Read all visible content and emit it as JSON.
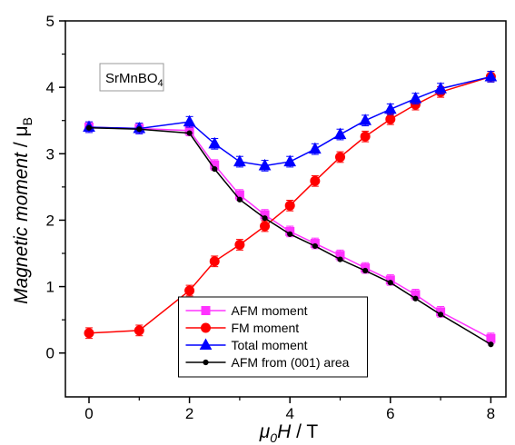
{
  "chart_data": {
    "type": "line",
    "x": [
      0,
      1,
      2,
      2.5,
      3,
      3.5,
      4,
      4.5,
      5,
      5.5,
      6,
      6.5,
      7,
      8
    ],
    "series": [
      {
        "name": "AFM moment",
        "color": "#ff33ff",
        "marker": "square",
        "values": [
          3.4,
          3.38,
          3.35,
          2.83,
          2.38,
          2.08,
          1.83,
          1.65,
          1.47,
          1.28,
          1.1,
          0.88,
          0.62,
          0.22
        ],
        "errors": [
          0.08,
          0.08,
          0.08,
          0.08,
          0.08,
          0.08,
          0.08,
          0.08,
          0.08,
          0.08,
          0.08,
          0.08,
          0.08,
          0.08
        ]
      },
      {
        "name": "FM moment",
        "color": "#ff0000",
        "marker": "circle",
        "values": [
          0.3,
          0.34,
          0.94,
          1.38,
          1.63,
          1.91,
          2.22,
          2.59,
          2.95,
          3.26,
          3.52,
          3.74,
          3.93,
          4.16
        ],
        "errors": [
          0.08,
          0.08,
          0.08,
          0.08,
          0.08,
          0.08,
          0.08,
          0.08,
          0.08,
          0.08,
          0.08,
          0.08,
          0.08,
          0.08
        ]
      },
      {
        "name": "Total moment",
        "color": "#0000ff",
        "marker": "triangle",
        "values": [
          3.4,
          3.38,
          3.48,
          3.15,
          2.88,
          2.82,
          2.88,
          3.07,
          3.29,
          3.5,
          3.67,
          3.83,
          3.98,
          4.16
        ],
        "errors": [
          0.08,
          0.08,
          0.08,
          0.08,
          0.08,
          0.08,
          0.08,
          0.08,
          0.08,
          0.08,
          0.08,
          0.08,
          0.08,
          0.08
        ]
      },
      {
        "name": "AFM from (001) area",
        "color": "#000000",
        "marker": "dot",
        "values": [
          3.39,
          3.37,
          3.31,
          2.77,
          2.31,
          2.03,
          1.79,
          1.61,
          1.41,
          1.24,
          1.06,
          0.82,
          0.58,
          0.13
        ]
      }
    ],
    "xlim": [
      -0.47,
      8.3
    ],
    "xticks": [
      0,
      2,
      4,
      6,
      8
    ],
    "xminorticks": [
      1,
      3,
      5,
      7
    ],
    "ylim": [
      -0.66,
      5
    ],
    "yticks": [
      0,
      1,
      2,
      3,
      4,
      5
    ],
    "yminorticks": [
      0.5,
      1.5,
      2.5,
      3.5,
      4.5
    ],
    "xlabel": [
      "μ",
      "0",
      "H",
      " / T"
    ],
    "ylabel": [
      "Magnetic moment",
      " / μ",
      "B"
    ],
    "annotation": [
      "SrMnBO",
      "4"
    ],
    "legend": "lower center"
  }
}
